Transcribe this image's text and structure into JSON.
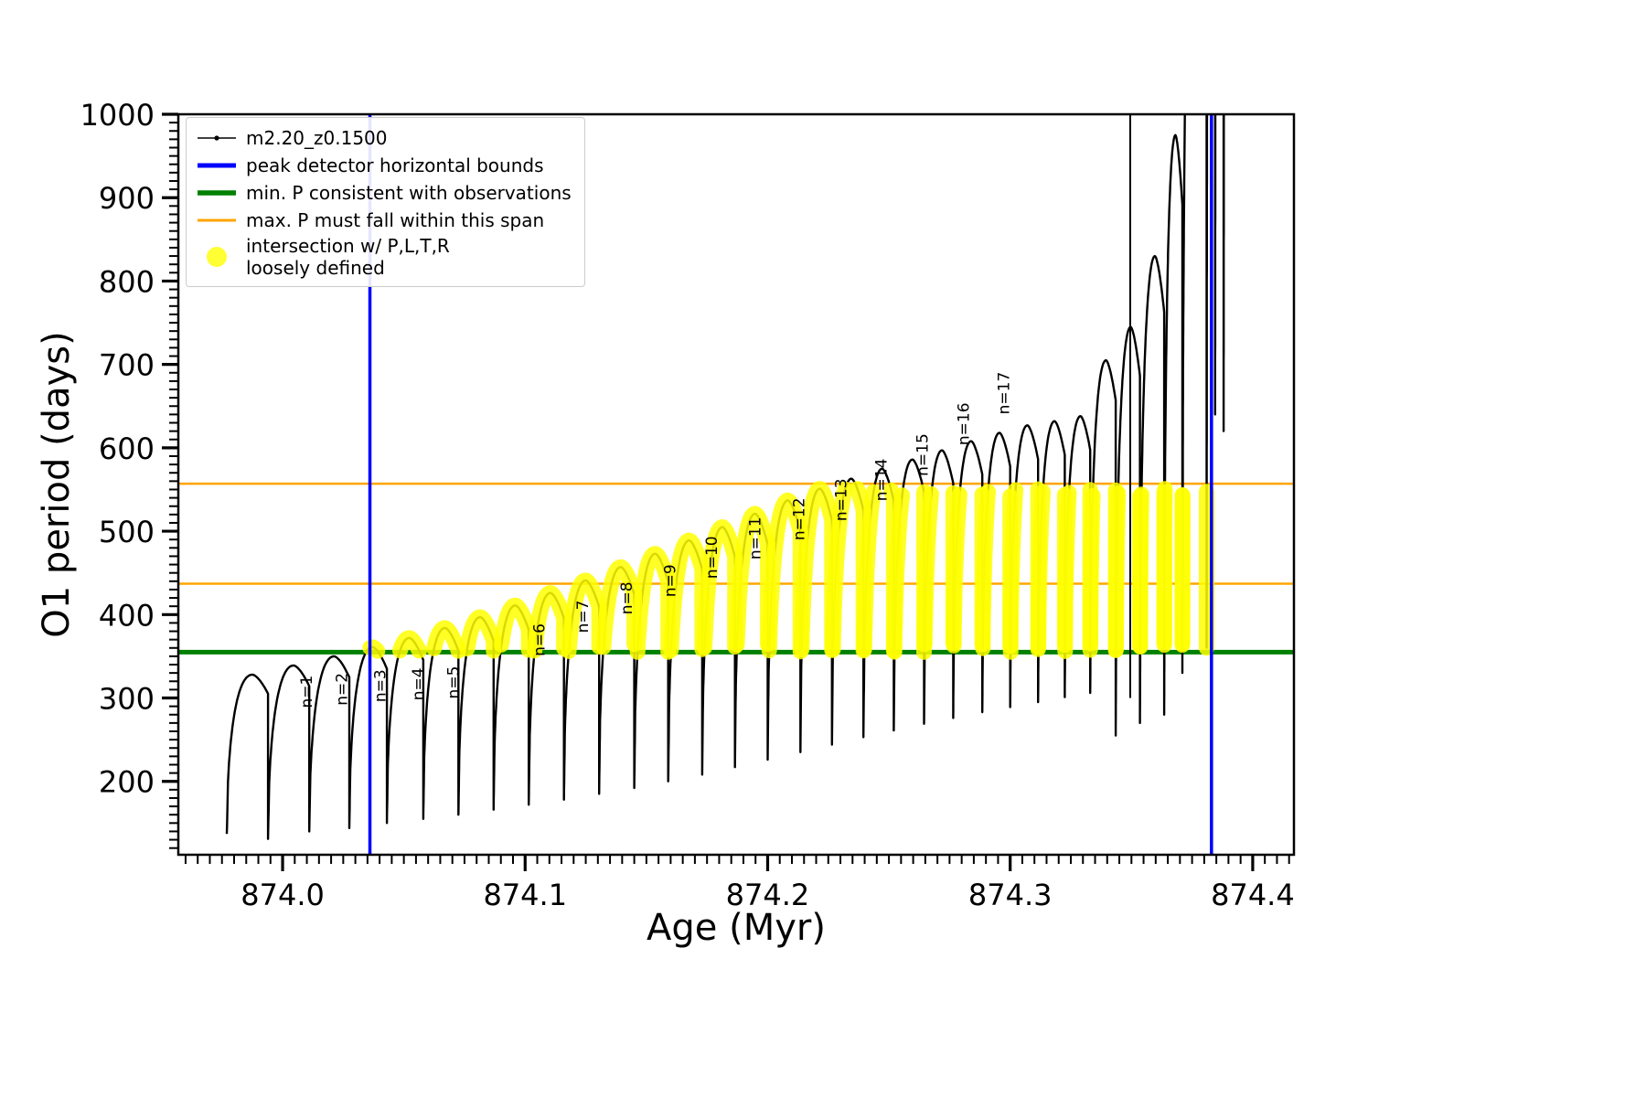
{
  "figure": {
    "xlabel": "Age (Myr)",
    "ylabel": "O1 period (days)",
    "background": "#ffffff"
  },
  "legend": {
    "items": [
      {
        "label": "m2.20_z0.1500",
        "type": "line-dot",
        "color": "#000000"
      },
      {
        "label": "peak detector horizontal bounds",
        "type": "line",
        "color": "#0000ff"
      },
      {
        "label": "min. P consistent with observations",
        "type": "line",
        "color": "#008000"
      },
      {
        "label": "max. P must fall within this span",
        "type": "line",
        "color": "#ffa500"
      },
      {
        "label": "intersection w/ P,L,T,R\nloosely defined",
        "type": "blob",
        "color": "#ffff00"
      }
    ]
  },
  "chart_data": {
    "type": "line",
    "title": "",
    "xlabel": "Age (Myr)",
    "ylabel": "O1 period (days)",
    "xlim": [
      873.957,
      874.417
    ],
    "ylim": [
      112,
      1000
    ],
    "xticks": [
      874.0,
      874.1,
      874.2,
      874.3,
      874.4
    ],
    "yticks": [
      200,
      300,
      400,
      500,
      600,
      700,
      800,
      900,
      1000
    ],
    "x_minor_step": 0.005,
    "y_minor_step": 10,
    "series": [
      {
        "name": "m2.20_z0.1500",
        "color": "#000000",
        "style": "dotted-line"
      }
    ],
    "vlines": {
      "label": "peak detector horizontal bounds",
      "color": "#0000ff",
      "width": 3.5,
      "x": [
        874.036,
        874.383
      ]
    },
    "hlines": [
      {
        "label": "min. P consistent with observations",
        "color": "#008000",
        "y": 355,
        "width": 5
      },
      {
        "label": "max. P must fall within this span",
        "color": "#ffa500",
        "y": 557,
        "width": 2.5
      },
      {
        "label": "max. P must fall within this span",
        "color": "#ffa500",
        "y": 437,
        "width": 2.5
      }
    ],
    "highlight": {
      "label": "intersection w/ P,L,T,R loosely defined",
      "color": "#ffff00",
      "opacity": 0.85,
      "p_range": [
        355,
        551
      ],
      "t_range": [
        874.036,
        874.385
      ]
    },
    "arches": [
      [
        873.977,
        328,
        137
      ],
      [
        873.994,
        339,
        131
      ],
      [
        874.011,
        350,
        140
      ],
      [
        874.0275,
        361,
        144
      ],
      [
        874.043,
        372,
        150
      ],
      [
        874.058,
        384,
        155
      ],
      [
        874.0725,
        397,
        160
      ],
      [
        874.087,
        411,
        166
      ],
      [
        874.1015,
        426,
        172
      ],
      [
        874.116,
        441,
        178
      ],
      [
        874.1305,
        457,
        185
      ],
      [
        874.145,
        473,
        192
      ],
      [
        874.159,
        489,
        200
      ],
      [
        874.173,
        505,
        208
      ],
      [
        874.1865,
        521,
        217
      ],
      [
        874.2,
        537,
        226
      ],
      [
        874.2135,
        551,
        235
      ],
      [
        874.2265,
        563,
        244
      ],
      [
        874.2395,
        575,
        253
      ],
      [
        874.252,
        586,
        261
      ],
      [
        874.2645,
        597,
        269
      ],
      [
        874.2765,
        608,
        276
      ],
      [
        874.2885,
        618,
        283
      ],
      [
        874.3,
        627,
        289
      ],
      [
        874.3115,
        632,
        295
      ],
      [
        874.3225,
        638,
        301
      ],
      [
        874.333,
        705,
        306
      ],
      [
        874.3435,
        745,
        255
      ],
      [
        874.3535,
        830,
        270
      ],
      [
        874.3635,
        975,
        280
      ],
      [
        874.371,
        1450,
        330
      ],
      [
        874.381,
        1900,
        360
      ],
      [
        874.3845,
        1900,
        640
      ],
      [
        874.388,
        1900,
        620
      ]
    ],
    "spikes": [
      {
        "t": 874.3495,
        "p0": 300,
        "p1": 1000
      }
    ],
    "data_end": 874.392,
    "n_labels": [
      {
        "text": "n=1",
        "t": 874.012,
        "p": 288
      },
      {
        "text": "n=2",
        "t": 874.0265,
        "p": 291
      },
      {
        "text": "n=3",
        "t": 874.0425,
        "p": 295
      },
      {
        "text": "n=4",
        "t": 874.058,
        "p": 297
      },
      {
        "text": "n=5",
        "t": 874.0725,
        "p": 299
      },
      {
        "text": "n=6",
        "t": 874.108,
        "p": 350
      },
      {
        "text": "n=7",
        "t": 874.126,
        "p": 378
      },
      {
        "text": "n=8",
        "t": 874.144,
        "p": 400
      },
      {
        "text": "n=9",
        "t": 874.162,
        "p": 421
      },
      {
        "text": "n=10",
        "t": 874.179,
        "p": 443
      },
      {
        "text": "n=11",
        "t": 874.197,
        "p": 466
      },
      {
        "text": "n=12",
        "t": 874.215,
        "p": 489
      },
      {
        "text": "n=13",
        "t": 874.2325,
        "p": 512
      },
      {
        "text": "n=14",
        "t": 874.249,
        "p": 536
      },
      {
        "text": "n=15",
        "t": 874.266,
        "p": 566
      },
      {
        "text": "n=16",
        "t": 874.283,
        "p": 603
      },
      {
        "text": "n=17",
        "t": 874.2995,
        "p": 640
      }
    ]
  }
}
